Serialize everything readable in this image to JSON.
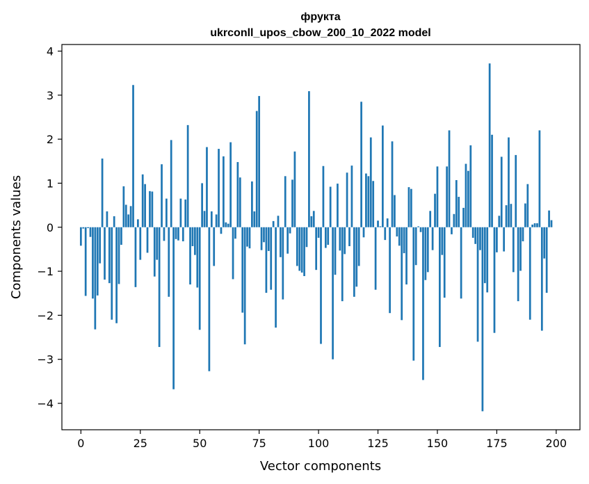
{
  "chart_data": {
    "type": "bar",
    "title": "фрукта",
    "subtitle": "ukrconll_upos_cbow_200_10_2022 model",
    "xlabel": "Vector components",
    "ylabel": "Components values",
    "xlim": [
      -8,
      210
    ],
    "ylim": [
      -4.6,
      4.15
    ],
    "xticks": [
      0,
      25,
      50,
      75,
      100,
      125,
      150,
      175,
      200
    ],
    "xtick_labels": [
      "0",
      "25",
      "50",
      "75",
      "100",
      "125",
      "150",
      "175",
      "200"
    ],
    "yticks": [
      -4,
      -3,
      -2,
      -1,
      0,
      1,
      2,
      3,
      4
    ],
    "ytick_labels": [
      "−4",
      "−3",
      "−2",
      "−1",
      "0",
      "1",
      "2",
      "3",
      "4"
    ],
    "bar_color": "#1f77b4",
    "series": [
      {
        "name": "фрукта",
        "values": [
          -0.42,
          -0.03,
          -1.56,
          -0.02,
          -0.22,
          -1.62,
          -2.32,
          -1.55,
          -0.82,
          1.56,
          -1.19,
          0.36,
          -1.27,
          -2.1,
          0.25,
          -2.18,
          -1.29,
          -0.4,
          0.93,
          0.51,
          0.29,
          0.48,
          3.23,
          -1.36,
          0.18,
          -0.74,
          1.2,
          0.98,
          -0.58,
          0.82,
          0.81,
          -1.12,
          -0.74,
          -2.72,
          1.43,
          -0.31,
          0.65,
          -1.58,
          1.98,
          -3.68,
          -0.27,
          -0.3,
          0.65,
          -0.32,
          0.63,
          2.32,
          -1.3,
          -0.43,
          -0.63,
          -1.37,
          -2.33,
          1.0,
          0.37,
          1.82,
          -3.27,
          0.36,
          -0.88,
          0.29,
          1.78,
          -0.15,
          1.61,
          0.11,
          0.08,
          1.93,
          -1.18,
          -0.26,
          1.48,
          1.13,
          -1.94,
          -2.66,
          -0.44,
          -0.48,
          1.04,
          0.36,
          2.64,
          2.98,
          -0.52,
          -0.34,
          -1.49,
          -0.54,
          -1.42,
          0.14,
          -2.28,
          0.26,
          -0.68,
          -1.64,
          1.16,
          -0.6,
          -0.14,
          1.08,
          1.72,
          -0.88,
          -0.99,
          -1.03,
          -1.11,
          -0.45,
          3.09,
          0.25,
          0.37,
          -0.97,
          -0.24,
          -2.65,
          1.39,
          -0.47,
          -0.4,
          0.92,
          -3.0,
          -1.08,
          0.99,
          -0.53,
          -1.68,
          -0.61,
          1.24,
          -0.43,
          1.4,
          -1.58,
          -1.35,
          -0.88,
          2.85,
          -0.23,
          1.22,
          1.16,
          2.04,
          1.05,
          -1.42,
          0.15,
          0.02,
          2.31,
          -0.29,
          0.2,
          -1.95,
          1.95,
          0.73,
          -0.21,
          -0.42,
          -2.11,
          -0.59,
          -1.3,
          0.91,
          0.87,
          -3.03,
          -0.86,
          0.02,
          -0.11,
          -3.47,
          -1.2,
          -1.02,
          0.37,
          -0.52,
          0.76,
          1.38,
          -2.72,
          -0.63,
          -1.6,
          1.38,
          2.2,
          -0.16,
          0.3,
          1.07,
          0.69,
          -1.62,
          0.44,
          1.44,
          1.28,
          1.86,
          -0.24,
          -0.38,
          -2.6,
          -0.52,
          -4.18,
          -1.27,
          -1.48,
          3.72,
          2.1,
          -2.4,
          -0.57,
          0.26,
          1.6,
          -0.55,
          0.5,
          2.04,
          0.53,
          -1.02,
          1.64,
          -1.68,
          -0.99,
          -0.32,
          0.54,
          0.98,
          -2.1,
          0.06,
          0.09,
          0.09,
          2.2,
          -2.35,
          -0.71,
          -1.49,
          0.38,
          0.16
        ]
      }
    ]
  }
}
